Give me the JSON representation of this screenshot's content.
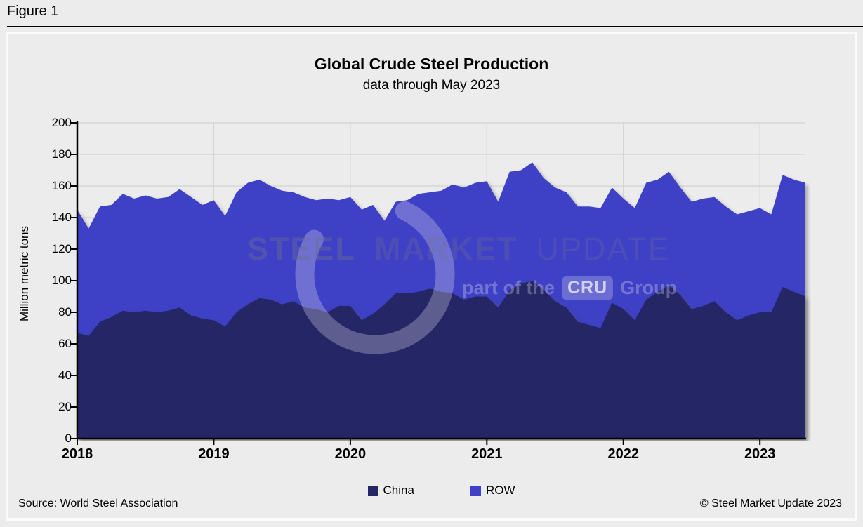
{
  "header": {
    "figure_label": "Figure 1"
  },
  "footer": {
    "source": "Source: World Steel Association",
    "copyright": "© Steel Market Update 2023"
  },
  "watermark": {
    "words": [
      "STEEL",
      "MARKET",
      "UPDATE"
    ],
    "tagline_prefix": "part of the",
    "tagline_box": "CRU",
    "tagline_suffix": "Group"
  },
  "chart_data": {
    "type": "area",
    "stacked": true,
    "title": "Global Crude Steel Production",
    "subtitle": "data through May 2023",
    "xlabel": "",
    "ylabel": "Million metric tons",
    "ylim": [
      0,
      200
    ],
    "y_ticks": [
      0,
      20,
      40,
      60,
      80,
      100,
      120,
      140,
      160,
      180,
      200
    ],
    "x_tick_labels": [
      "2018",
      "2019",
      "2020",
      "2021",
      "2022",
      "2023"
    ],
    "x_unit": "month",
    "start_month": "2018-01",
    "end_month": "2023-05",
    "grid": true,
    "grid_color": "#d3d3d3",
    "background_color": "#ececec",
    "legend_position": "bottom",
    "series": [
      {
        "name": "China",
        "color": "#242666",
        "values": [
          67,
          65,
          74,
          77,
          81,
          80,
          81,
          80,
          81,
          83,
          78,
          76,
          75,
          71,
          80,
          85,
          89,
          88,
          85,
          87,
          83,
          82,
          80,
          84,
          84,
          75,
          79,
          85,
          92,
          92,
          93,
          95,
          93,
          92,
          88,
          90,
          90,
          83,
          94,
          98,
          100,
          94,
          87,
          83,
          74,
          72,
          70,
          86,
          82,
          75,
          88,
          93,
          97,
          91,
          82,
          84,
          87,
          80,
          75,
          78,
          80,
          80,
          96,
          93,
          90
        ]
      },
      {
        "name": "ROW",
        "color": "#3e40c5",
        "values": [
          78,
          68,
          73,
          71,
          74,
          72,
          73,
          72,
          72,
          75,
          75,
          72,
          76,
          70,
          76,
          77,
          75,
          72,
          72,
          69,
          70,
          69,
          72,
          67,
          69,
          70,
          69,
          53,
          58,
          59,
          62,
          61,
          64,
          69,
          71,
          72,
          73,
          67,
          75,
          72,
          75,
          71,
          72,
          73,
          73,
          75,
          76,
          73,
          70,
          71,
          74,
          71,
          72,
          68,
          68,
          68,
          66,
          67,
          67,
          66,
          66,
          62,
          71,
          71,
          72
        ]
      }
    ]
  }
}
